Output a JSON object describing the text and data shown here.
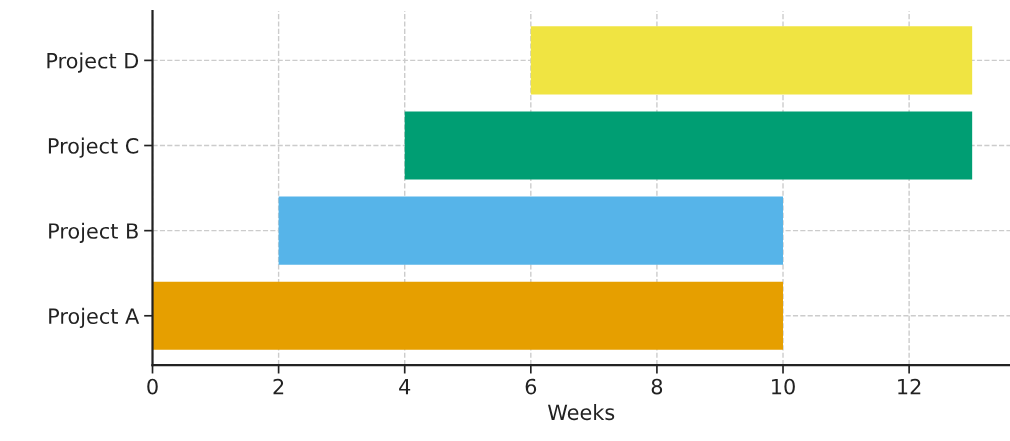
{
  "chart_data": {
    "type": "bar",
    "orientation": "horizontal",
    "xlabel": "Weeks",
    "categories": [
      "Project D",
      "Project C",
      "Project B",
      "Project A"
    ],
    "values": [
      7,
      9,
      8,
      10
    ],
    "base": [
      6,
      4,
      2,
      0
    ],
    "colors": [
      "#f0e442",
      "#009e73",
      "#56b4e9",
      "#e69f00"
    ],
    "xlim": [
      0,
      13.6
    ],
    "xticks": [
      0,
      2,
      4,
      6,
      8,
      10,
      12
    ],
    "grid": true,
    "line_style": "dashed"
  }
}
